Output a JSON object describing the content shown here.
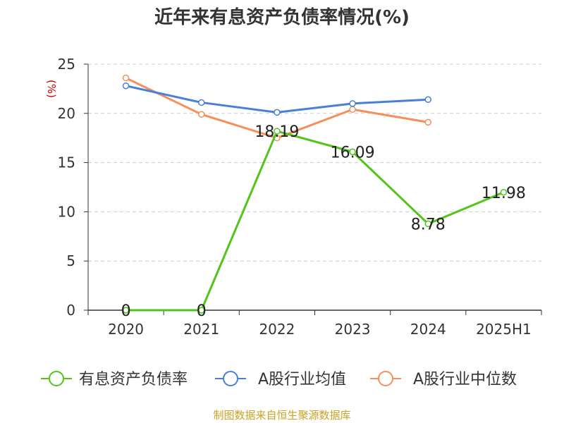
{
  "chart_data": {
    "type": "line",
    "title": "近年来有息资产负债率情况(%)",
    "ylabel": "(%)",
    "categories": [
      "2020",
      "2021",
      "2022",
      "2023",
      "2024",
      "2025H1"
    ],
    "ylim": [
      0,
      25
    ],
    "yticks": [
      0,
      5,
      10,
      15,
      20,
      25
    ],
    "grid": true,
    "legend_position": "bottom",
    "series": [
      {
        "name": "有息资产负债率",
        "color": "#52c41a",
        "values": [
          0,
          0,
          18.19,
          16.09,
          8.78,
          11.98
        ],
        "labels": [
          "0",
          "0",
          "18.19",
          "16.09",
          "8.78",
          "11.98"
        ]
      },
      {
        "name": "A股行业均值",
        "color": "#4a7fd9",
        "values": [
          22.8,
          21.1,
          20.1,
          21.0,
          21.4,
          null
        ]
      },
      {
        "name": "A股行业中位数",
        "color": "#f78f5c",
        "values": [
          23.6,
          19.9,
          17.5,
          20.4,
          19.1,
          null
        ]
      }
    ]
  },
  "source": "制图数据来自恒生聚源数据库"
}
